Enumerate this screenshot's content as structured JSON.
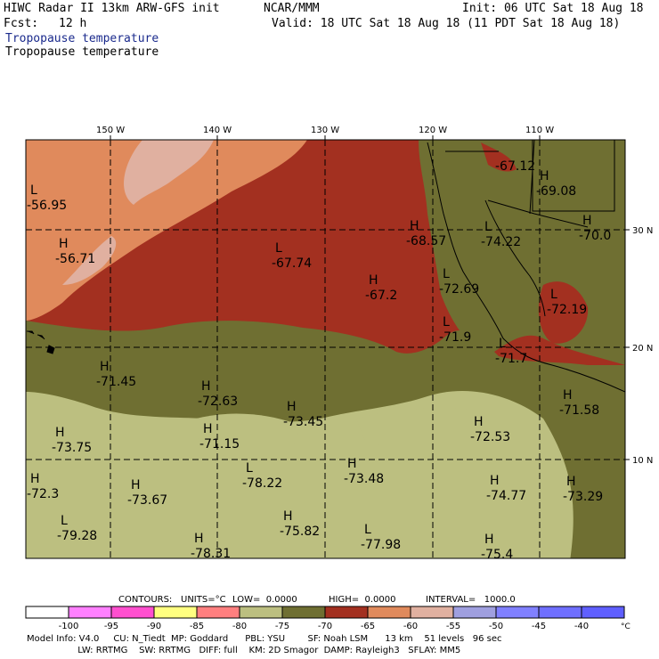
{
  "header": {
    "model_title": "HIWC Radar II 13km ARW-GFS init",
    "org": "NCAR/MMM",
    "init": "Init: 06 UTC Sat 18 Aug 18",
    "fcst_label": "Fcst:",
    "fcst_value": "12 h",
    "valid": "Valid: 18 UTC Sat 18 Aug 18 (11 PDT Sat 18 Aug 18)",
    "field_title_1": "Tropopause temperature",
    "field_title_2": "Tropopause temperature"
  },
  "map": {
    "longitude_labels": [
      "150 W",
      "140 W",
      "130 W",
      "120 W",
      "110 W"
    ],
    "latitude_labels": [
      "30 N",
      "20 N",
      "10 N"
    ],
    "extrema": [
      {
        "type": "L",
        "value": "-56.95"
      },
      {
        "type": "H",
        "value": "-56.71"
      },
      {
        "type": "L",
        "value": "-67.74"
      },
      {
        "type": "H",
        "value": "-67.2"
      },
      {
        "type": "H",
        "value": "-68.57"
      },
      {
        "type": "",
        "value": "-67.12"
      },
      {
        "type": "H",
        "value": "-69.08"
      },
      {
        "type": "H",
        "value": "-70.0"
      },
      {
        "type": "L",
        "value": "-74.22"
      },
      {
        "type": "L",
        "value": "-72.69"
      },
      {
        "type": "L",
        "value": "-72.19"
      },
      {
        "type": "L",
        "value": "-71.9"
      },
      {
        "type": "L",
        "value": "-71.7"
      },
      {
        "type": "H",
        "value": "-71.45"
      },
      {
        "type": "H",
        "value": "-72.63"
      },
      {
        "type": "H",
        "value": "-73.45"
      },
      {
        "type": "H",
        "value": "-71.15"
      },
      {
        "type": "H",
        "value": "-73.75"
      },
      {
        "type": "H",
        "value": "-72.53"
      },
      {
        "type": "H",
        "value": "-71.58"
      },
      {
        "type": "L",
        "value": "-78.22"
      },
      {
        "type": "H",
        "value": "-73.48"
      },
      {
        "type": "H",
        "value": "-72.3"
      },
      {
        "type": "H",
        "value": "-73.67"
      },
      {
        "type": "H",
        "value": "-74.77"
      },
      {
        "type": "H",
        "value": "-73.29"
      },
      {
        "type": "L",
        "value": "-79.28"
      },
      {
        "type": "H",
        "value": "-75.82"
      },
      {
        "type": "L",
        "value": "-77.98"
      },
      {
        "type": "H",
        "value": "-78.31"
      },
      {
        "type": "H",
        "value": "-75.4"
      }
    ]
  },
  "contour_info": {
    "contours": "CONTOURS:",
    "units": "UNITS=°C",
    "low": "LOW=  0.0000",
    "high": "HIGH=  0.0000",
    "interval": "INTERVAL=   1000.0"
  },
  "colorbar": {
    "colors": [
      "#ffffff",
      "#ff80ff",
      "#ff4fcf",
      "#ffff80",
      "#ff7f7f",
      "#bcbf80",
      "#6f6f32",
      "#a33020",
      "#e08a5c",
      "#e0b0a0",
      "#9f9fdf",
      "#8080ff",
      "#6f6fff",
      "#5f5fff"
    ],
    "tick_labels": [
      "-100",
      "-95",
      "-90",
      "-85",
      "-80",
      "-75",
      "-70",
      "-65",
      "-60",
      "-55",
      "-50",
      "-45",
      "-40"
    ],
    "unit": "°C"
  },
  "footer": {
    "line1": "Model Info: V4.0     CU: N_Tiedt  MP: Goddard      PBL: YSU        SF: Noah LSM      13 km    51 levels   96 sec",
    "line2": "                  LW: RRTMG    SW: RRTMG   DIFF: full    KM: 2D Smagor  DAMP: Rayleigh3   SFLAY: MM5"
  }
}
